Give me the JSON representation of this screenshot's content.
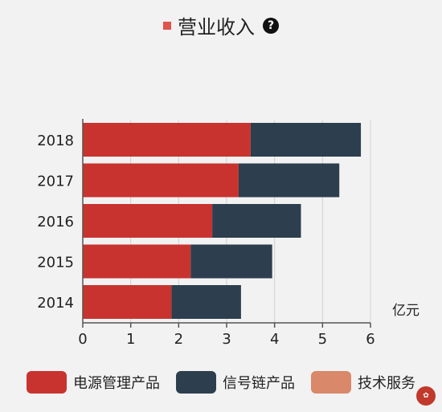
{
  "title": "营业收入",
  "colors": {
    "series0": "#c8332f",
    "series1": "#2d3e4e",
    "series2": "#d9886a",
    "title_marker": "#e0544c"
  },
  "chart_data": {
    "type": "bar",
    "orientation": "horizontal",
    "stacked": true,
    "categories": [
      "2014",
      "2015",
      "2016",
      "2017",
      "2018"
    ],
    "series": [
      {
        "name": "电源管理产品",
        "values": [
          1.85,
          2.25,
          2.7,
          3.25,
          3.5
        ]
      },
      {
        "name": "信号链产品",
        "values": [
          1.45,
          1.7,
          1.85,
          2.1,
          2.3
        ]
      },
      {
        "name": "技术服务",
        "values": [
          0,
          0,
          0,
          0,
          0
        ]
      }
    ],
    "xlabel": "亿元",
    "xlim": [
      0,
      6
    ],
    "xticks": [
      "0",
      "1",
      "2",
      "3",
      "4",
      "5",
      "6"
    ],
    "grid": true,
    "legend_position": "bottom"
  }
}
